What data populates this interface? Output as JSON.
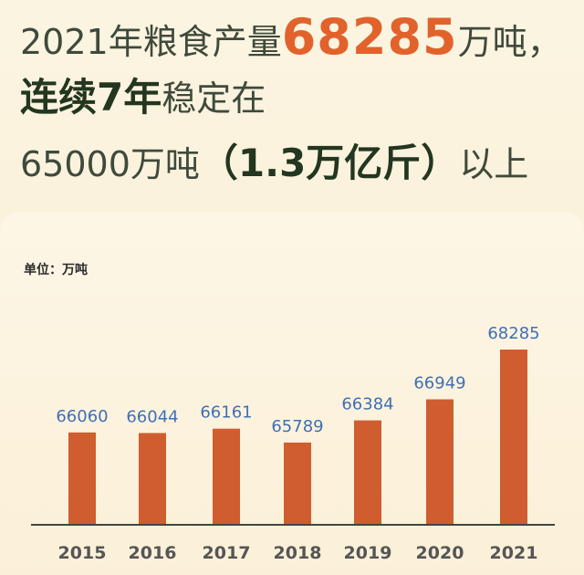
{
  "headline": {
    "line1_prefix": "2021年粮食产量",
    "line1_value": "68285",
    "line1_suffix": "万吨",
    "line1_punct": "，",
    "line2_bold": "连续7年",
    "line2_rest": "稳定在",
    "line3_prefix": "65000万吨",
    "line3_bold": "（1.3万亿斤）",
    "line3_suffix": "以上"
  },
  "unit_label": "单位：万吨",
  "colors": {
    "bar": "#cf5d2f",
    "value_label": "#3f6fb6",
    "axis": "#444444",
    "headline_orange": "#e2622c",
    "headline_dark": "#23361f"
  },
  "chart_data": {
    "type": "bar",
    "categories": [
      "2015",
      "2016",
      "2017",
      "2018",
      "2019",
      "2020",
      "2021"
    ],
    "values": [
      66060,
      66044,
      66161,
      65789,
      66384,
      66949,
      68285
    ],
    "value_labels": [
      "66060",
      "66044",
      "66161",
      "65789",
      "66384",
      "66949",
      "68285"
    ],
    "title": "",
    "xlabel": "",
    "ylabel": "",
    "ylim": [
      63580,
      68285
    ],
    "grid": false,
    "legend": "none"
  }
}
